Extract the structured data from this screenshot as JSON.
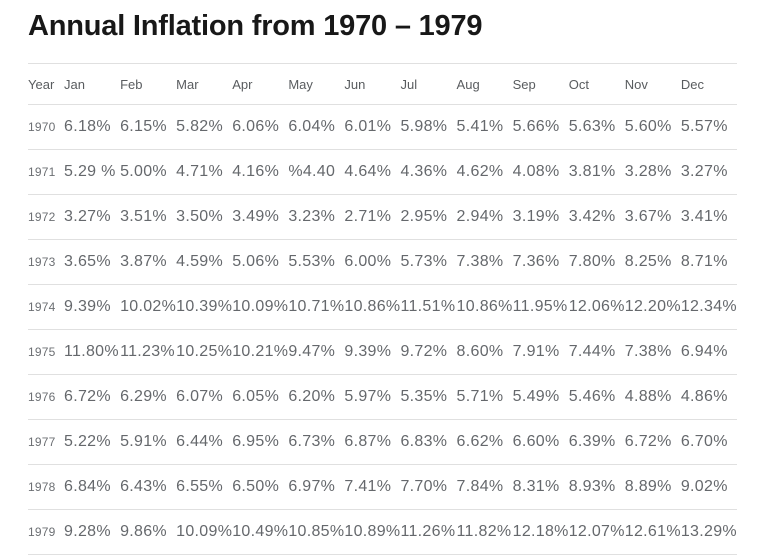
{
  "title": "Annual Inflation from 1970 – 1979",
  "table": {
    "columns": [
      "Year",
      "Jan",
      "Feb",
      "Mar",
      "Apr",
      "May",
      "Jun",
      "Jul",
      "Aug",
      "Sep",
      "Oct",
      "Nov",
      "Dec"
    ],
    "rows": [
      {
        "year": "1970",
        "values": [
          "6.18%",
          "6.15%",
          "5.82%",
          "6.06%",
          "6.04%",
          "6.01%",
          "5.98%",
          "5.41%",
          "5.66%",
          "5.63%",
          "5.60%",
          "5.57%"
        ]
      },
      {
        "year": "1971",
        "values": [
          "5.29 %",
          "5.00%",
          "4.71%",
          "4.16%",
          "%4.40",
          "4.64%",
          "4.36%",
          "4.62%",
          "4.08%",
          "3.81%",
          "3.28%",
          "3.27%"
        ]
      },
      {
        "year": "1972",
        "values": [
          "3.27%",
          "3.51%",
          "3.50%",
          "3.49%",
          "3.23%",
          "2.71%",
          "2.95%",
          "2.94%",
          "3.19%",
          "3.42%",
          "3.67%",
          "3.41%"
        ]
      },
      {
        "year": "1973",
        "values": [
          "3.65%",
          "3.87%",
          "4.59%",
          "5.06%",
          "5.53%",
          "6.00%",
          "5.73%",
          "7.38%",
          "7.36%",
          "7.80%",
          "8.25%",
          "8.71%"
        ]
      },
      {
        "year": "1974",
        "values": [
          "9.39%",
          "10.02%",
          "10.39%",
          "10.09%",
          "10.71%",
          "10.86%",
          "11.51%",
          "10.86%",
          "11.95%",
          "12.06%",
          "12.20%",
          "12.34%"
        ]
      },
      {
        "year": "1975",
        "values": [
          "11.80%",
          "11.23%",
          "10.25%",
          "10.21%",
          "9.47%",
          "9.39%",
          "9.72%",
          "8.60%",
          "7.91%",
          "7.44%",
          "7.38%",
          "6.94%"
        ]
      },
      {
        "year": "1976",
        "values": [
          "6.72%",
          "6.29%",
          "6.07%",
          "6.05%",
          "6.20%",
          "5.97%",
          "5.35%",
          "5.71%",
          "5.49%",
          "5.46%",
          "4.88%",
          "4.86%"
        ]
      },
      {
        "year": "1977",
        "values": [
          "5.22%",
          "5.91%",
          "6.44%",
          "6.95%",
          "6.73%",
          "6.87%",
          "6.83%",
          "6.62%",
          "6.60%",
          "6.39%",
          "6.72%",
          "6.70%"
        ]
      },
      {
        "year": "1978",
        "values": [
          "6.84%",
          "6.43%",
          "6.55%",
          "6.50%",
          "6.97%",
          "7.41%",
          "7.70%",
          "7.84%",
          "8.31%",
          "8.93%",
          "8.89%",
          "9.02%"
        ]
      },
      {
        "year": "1979",
        "values": [
          "9.28%",
          "9.86%",
          "10.09%",
          "10.49%",
          "10.85%",
          "10.89%",
          "11.26%",
          "11.82%",
          "12.18%",
          "12.07%",
          "12.61%",
          "13.29%"
        ]
      }
    ]
  },
  "colors": {
    "title_text": "#181818",
    "header_text": "#595c5f",
    "cell_text": "#65686c",
    "year_text": "#6c6f73",
    "divider_line": "#e0e0e0",
    "background": "#ffffff"
  }
}
